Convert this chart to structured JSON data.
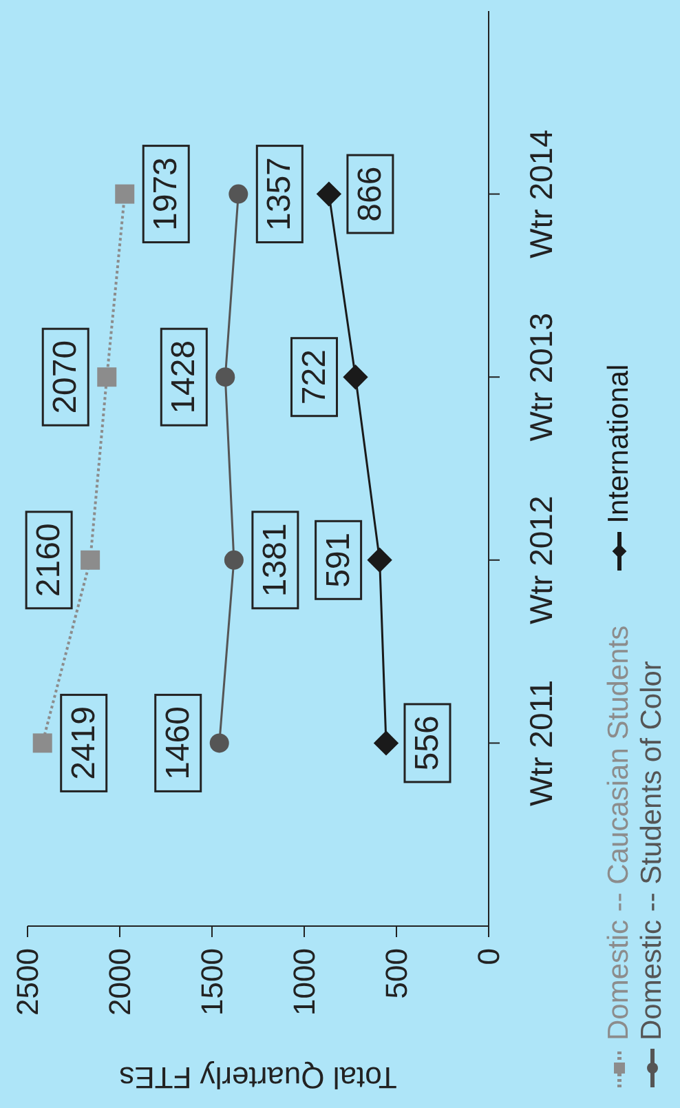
{
  "chart_data": {
    "type": "line",
    "orientation": "horizontal",
    "xlabel": "Total Quarterly FTEs",
    "categories": [
      "Wtr 2014",
      "Wtr 2013",
      "Wtr 2012",
      "Wtr 2011"
    ],
    "series": [
      {
        "name": "Domestic -- Caucasian Students",
        "color": "#8c8c8c",
        "values": [
          1973,
          2070,
          2160,
          2419
        ],
        "marker": "square",
        "line_style": "dotted"
      },
      {
        "name": "Domestic -- Students of Color",
        "color": "#555555",
        "values": [
          1357,
          1428,
          1381,
          1460
        ],
        "marker": "circle",
        "line_style": "solid"
      },
      {
        "name": "International",
        "color": "#1a1a1a",
        "values": [
          866,
          722,
          591,
          556
        ],
        "marker": "diamond",
        "line_style": "solid"
      }
    ],
    "xlim": [
      2500,
      0
    ],
    "xticks": [
      2500,
      2000,
      1500,
      1000,
      500,
      0
    ],
    "data_labels": true,
    "legend": "right"
  }
}
